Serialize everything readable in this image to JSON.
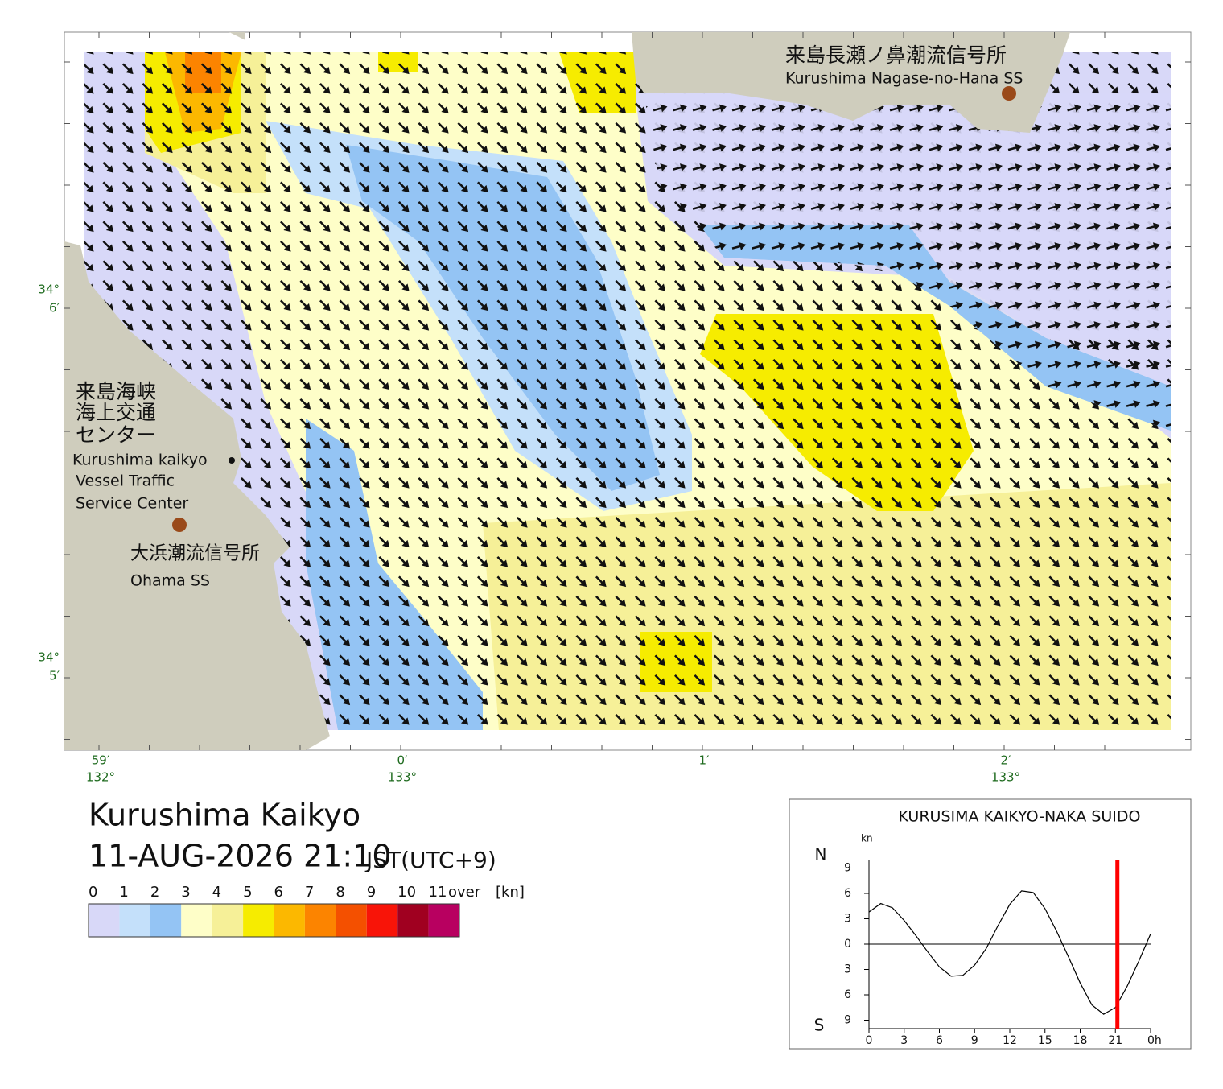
{
  "map": {
    "labels": [
      "来島長瀬ノ鼻潮流信号所",
      "Kurushima Nagase-no-Hana SS",
      "来島海峡",
      "海上交通",
      "センター",
      "Kurushima kaikyo",
      "Vessel Traffic",
      "Service Center",
      "大浜潮流信号所",
      "Ohama SS"
    ],
    "lat_labels": [
      [
        "34°",
        "6′"
      ],
      [
        "34°",
        "5′"
      ]
    ],
    "lon_labels": [
      [
        "59′",
        "132°"
      ],
      [
        "0′",
        "133°"
      ],
      [
        "1′"
      ],
      [
        "2′",
        "133°"
      ]
    ]
  },
  "title": "Kurushima Kaikyo",
  "datetime": "11-AUG-2026 21:10",
  "timezone": "JST(UTC+9)",
  "legend": {
    "labels": [
      "0",
      "1",
      "2",
      "3",
      "4",
      "5",
      "6",
      "7",
      "8",
      "9",
      "10",
      "11",
      "over"
    ],
    "unit": "[kn]",
    "colors": [
      "#d8d8f8",
      "#c4e0fa",
      "#94c4f4",
      "#fefec8",
      "#f6f098",
      "#f6ec00",
      "#fcb800",
      "#fc8400",
      "#f45000",
      "#f81408",
      "#a00020",
      "#b80060"
    ]
  },
  "chart_data": {
    "type": "line",
    "title": "KURUSIMA KAIKYO-NAKA SUIDO",
    "y_unit": "kn",
    "north_label": "N",
    "south_label": "S",
    "x": [
      0,
      1,
      2,
      3,
      4,
      5,
      6,
      7,
      8,
      9,
      10,
      11,
      12,
      13,
      14,
      15,
      16,
      17,
      18,
      19,
      20,
      21,
      22,
      23,
      24
    ],
    "series": [
      {
        "color": "#000000",
        "values": [
          3.8,
          4.8,
          4.3,
          2.8,
          1,
          -0.9,
          -2.7,
          -3.8,
          -3.7,
          -2.5,
          -0.5,
          2.2,
          4.7,
          6.3,
          6.1,
          4.2,
          1.5,
          -1.5,
          -4.6,
          -7.2,
          -8.3,
          -7.5,
          -5,
          -2,
          1.2
        ]
      }
    ],
    "xlim": [
      0,
      24
    ],
    "ylim": [
      -10,
      10
    ],
    "xticks": [
      0,
      3,
      6,
      9,
      12,
      15,
      18,
      21,
      {
        "value": 24,
        "label": "0h"
      }
    ],
    "yticks": [
      {
        "value": 9,
        "label": "9"
      },
      {
        "value": 6,
        "label": "6"
      },
      {
        "value": 3,
        "label": "3"
      },
      0,
      {
        "value": -3,
        "label": "3"
      },
      {
        "value": -6,
        "label": "6"
      },
      {
        "value": -9,
        "label": "9"
      }
    ],
    "current_time": 21.17,
    "current_color": "#ff0000"
  }
}
